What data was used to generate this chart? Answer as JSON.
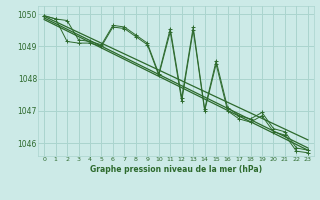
{
  "bg_color": "#cceae7",
  "grid_color": "#aad4ce",
  "line_color": "#2d6a2d",
  "title": "Graphe pression niveau de la mer (hPa)",
  "xlim": [
    -0.5,
    23.5
  ],
  "ylim": [
    1045.6,
    1050.25
  ],
  "yticks": [
    1046,
    1047,
    1048,
    1049,
    1050
  ],
  "xticks": [
    0,
    1,
    2,
    3,
    4,
    5,
    6,
    7,
    8,
    9,
    10,
    11,
    12,
    13,
    14,
    15,
    16,
    17,
    18,
    19,
    20,
    21,
    22,
    23
  ],
  "series1_x": [
    0,
    1,
    2,
    3,
    4,
    5,
    6,
    7,
    8,
    9,
    10,
    11,
    12,
    13,
    14,
    15,
    16,
    17,
    18,
    19,
    20,
    21,
    22,
    23
  ],
  "series1_y": [
    1049.95,
    1049.85,
    1049.8,
    1049.2,
    1049.15,
    1049.05,
    1049.65,
    1049.6,
    1049.35,
    1049.1,
    1048.15,
    1049.55,
    1047.4,
    1049.6,
    1047.05,
    1048.55,
    1047.1,
    1046.85,
    1046.75,
    1046.95,
    1046.45,
    1046.35,
    1045.85,
    1045.78
  ],
  "series2_x": [
    0,
    1,
    2,
    3,
    4,
    5,
    6,
    7,
    8,
    9,
    10,
    11,
    12,
    13,
    14,
    15,
    16,
    17,
    18,
    19,
    20,
    21,
    22,
    23
  ],
  "series2_y": [
    1049.95,
    1049.85,
    1049.15,
    1049.1,
    1049.1,
    1049.0,
    1049.6,
    1049.55,
    1049.3,
    1049.05,
    1048.1,
    1049.45,
    1047.3,
    1049.5,
    1047.0,
    1048.45,
    1047.0,
    1046.75,
    1046.65,
    1046.85,
    1046.35,
    1046.25,
    1045.75,
    1045.7
  ],
  "trend1_x": [
    0,
    23
  ],
  "trend1_y": [
    1049.93,
    1046.1
  ],
  "trend2_x": [
    0,
    23
  ],
  "trend2_y": [
    1049.88,
    1045.85
  ],
  "trend3_x": [
    0,
    23
  ],
  "trend3_y": [
    1049.83,
    1045.78
  ]
}
